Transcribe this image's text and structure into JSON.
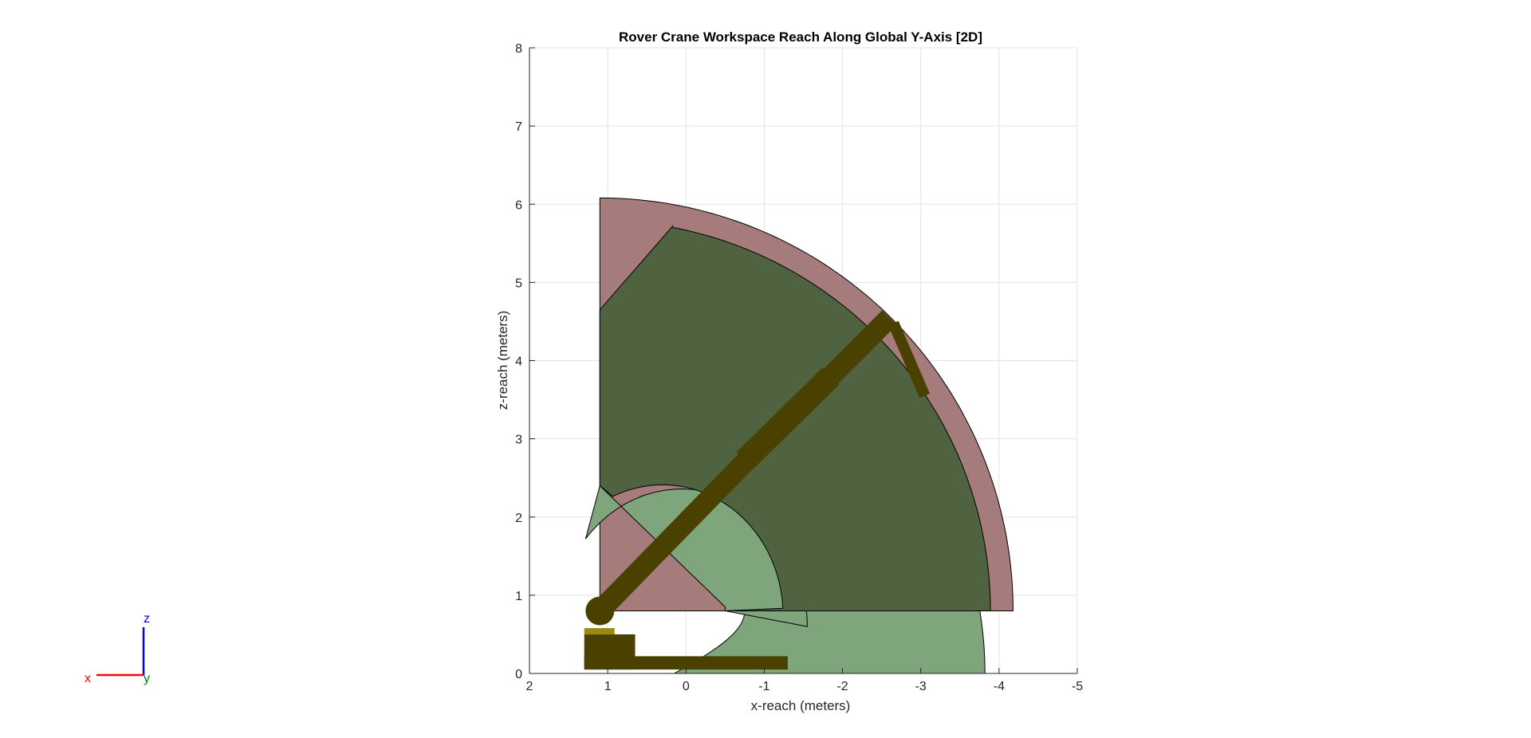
{
  "chart_data": {
    "type": "area",
    "title": "Rover Crane Workspace Reach Along Global Y-Axis [2D]",
    "xlabel": "x-reach (meters)",
    "ylabel": "z-reach (meters)",
    "xlim": [
      2,
      -5
    ],
    "ylim": [
      0,
      8
    ],
    "x_reversed": true,
    "x_ticks": [
      2,
      1,
      0,
      -1,
      -2,
      -3,
      -4,
      -5
    ],
    "x_tick_labels": [
      "2",
      "1",
      "0",
      "-1",
      "-2",
      "-3",
      "-4",
      "-5"
    ],
    "y_ticks": [
      0,
      1,
      2,
      3,
      4,
      5,
      6,
      7,
      8
    ],
    "y_tick_labels": [
      "0",
      "1",
      "2",
      "3",
      "4",
      "5",
      "6",
      "7",
      "8"
    ],
    "grid": true,
    "colors": {
      "max_reach_region": "#a57b7b",
      "operational_region": "#4f6340",
      "lower_region": "#7ea57b",
      "boom": "#4a4100",
      "base": "#4a4100",
      "bucket": "#9c8a10",
      "grid": "#e3e3e3",
      "axes": "#262626"
    },
    "regions": [
      {
        "name": "max-reach",
        "center": [
          1.1,
          0.8
        ],
        "outer_radius": 5.28,
        "x_outer_end": -4.18,
        "top_z": 6.08,
        "floor_z": 0.8
      },
      {
        "name": "operational",
        "polygon_start": [
          1.1,
          4.65
        ],
        "polygon_corner": [
          0.17,
          5.72
        ],
        "center": [
          1.1,
          0.8
        ],
        "outer_radius": 4.99,
        "inner_start_z": 2.4,
        "inner_bottom_x": -0.5,
        "floor_z": 0.8
      },
      {
        "name": "lower",
        "center": [
          1.1,
          0.0
        ],
        "outer_radius": 4.92,
        "x_bottom_outer": -3.85,
        "x_bottom_inner": -0.35,
        "top_z": 0.8
      }
    ],
    "boom": {
      "pivot": [
        1.1,
        0.8
      ],
      "segments": [
        {
          "from": [
            1.1,
            0.8
          ],
          "to": [
            -0.8,
            2.75
          ]
        },
        {
          "from": [
            -0.75,
            2.72
          ],
          "to": [
            -1.85,
            3.8
          ]
        },
        {
          "from": [
            -1.8,
            3.75
          ],
          "to": [
            -2.6,
            4.55
          ]
        }
      ],
      "hook_line": {
        "from": [
          -2.65,
          4.48
        ],
        "to": [
          -3.05,
          3.55
        ]
      }
    },
    "base": [
      {
        "x": [
          1.3,
          0.65
        ],
        "z": [
          0.05,
          0.5
        ]
      },
      {
        "x": [
          1.3,
          -1.3
        ],
        "z": [
          0.05,
          0.22
        ]
      }
    ],
    "triad": {
      "x_label": "x",
      "y_label": "y",
      "z_label": "z"
    }
  }
}
